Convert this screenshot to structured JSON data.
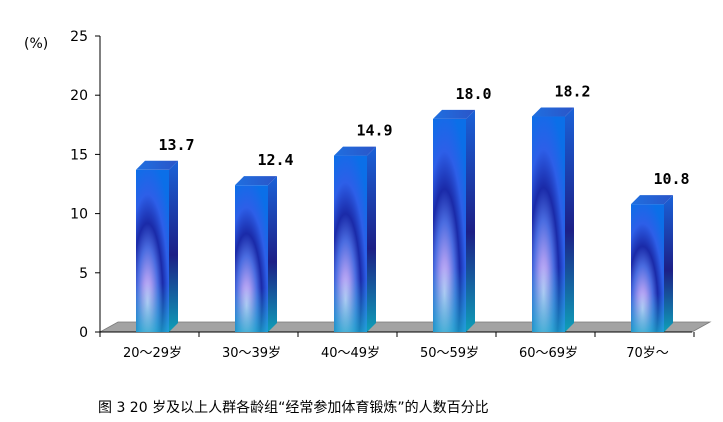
{
  "caption": "图 3   20 岁及以上人群各龄组“经常参加体育锻炼”的人数百分比",
  "colors": {
    "bar_light": "#b7a8f0",
    "bar_mid": "#3a52e6",
    "bar_dark": "#15169a",
    "bar_teal": "#19c7c9",
    "floor": "#a3a3a3",
    "axis": "#000000"
  },
  "chart_data": {
    "type": "bar",
    "style": "3d",
    "unit_label": "(%)",
    "categories": [
      "20～29岁",
      "30～39岁",
      "40～49岁",
      "50～59岁",
      "60～69岁",
      "70岁～"
    ],
    "values": [
      13.7,
      12.4,
      14.9,
      18.0,
      18.2,
      10.8
    ],
    "value_labels": [
      "13.7",
      "12.4",
      "14.9",
      "18.0",
      "18.2",
      "10.8"
    ],
    "ylim": [
      0,
      25
    ],
    "yticks": [
      0,
      5,
      10,
      15,
      20,
      25
    ],
    "ytick_labels": [
      "0",
      "5",
      "10",
      "15",
      "20",
      "25"
    ],
    "grid": false,
    "legend": "none"
  }
}
